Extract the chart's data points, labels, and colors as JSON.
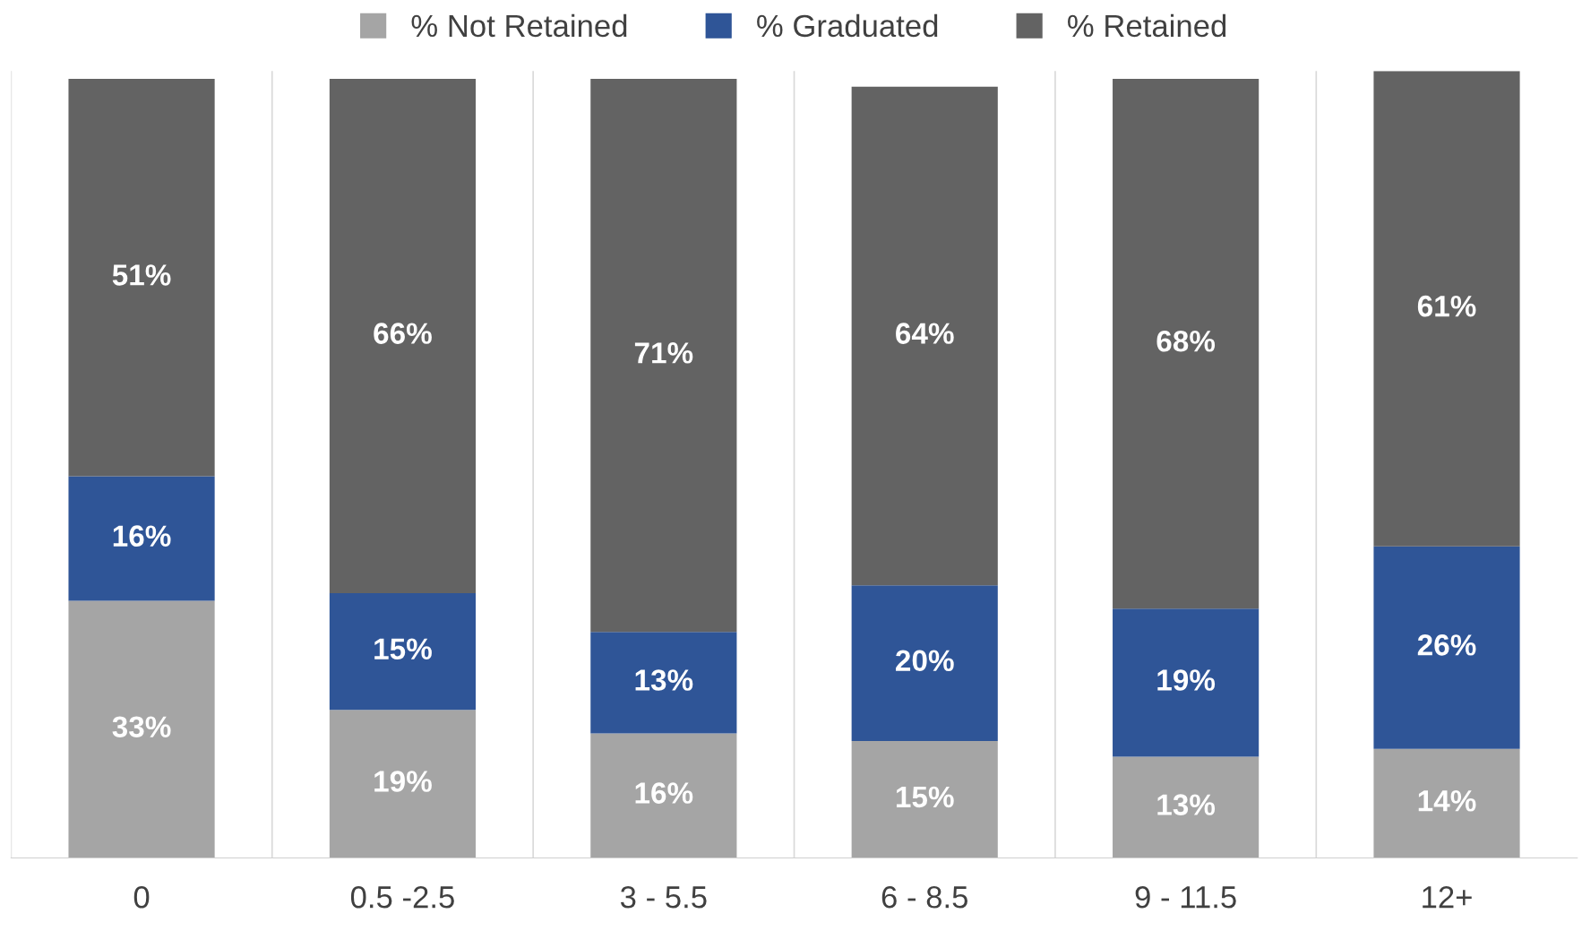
{
  "chart_data": {
    "type": "bar",
    "stacked": true,
    "legend": "top",
    "grid": "x",
    "categories": [
      "0",
      "0.5 -2.5",
      "3 - 5.5",
      "6 - 8.5",
      "9 - 11.5",
      "12+"
    ],
    "series": [
      {
        "name": "% Not Retained",
        "color": "#a5a5a5",
        "values": [
          33,
          19,
          16,
          15,
          13,
          14
        ],
        "value_labels": [
          "33%",
          "19%",
          "16%",
          "15%",
          "13%",
          "14%"
        ]
      },
      {
        "name": "% Graduated",
        "color": "#2f5597",
        "values": [
          16,
          15,
          13,
          20,
          19,
          26
        ],
        "value_labels": [
          "16%",
          "15%",
          "13%",
          "20%",
          "19%",
          "26%"
        ]
      },
      {
        "name": "% Retained",
        "color": "#636363",
        "values": [
          51,
          66,
          71,
          64,
          68,
          61
        ],
        "value_labels": [
          "51%",
          "66%",
          "71%",
          "64%",
          "68%",
          "61%"
        ]
      }
    ]
  }
}
